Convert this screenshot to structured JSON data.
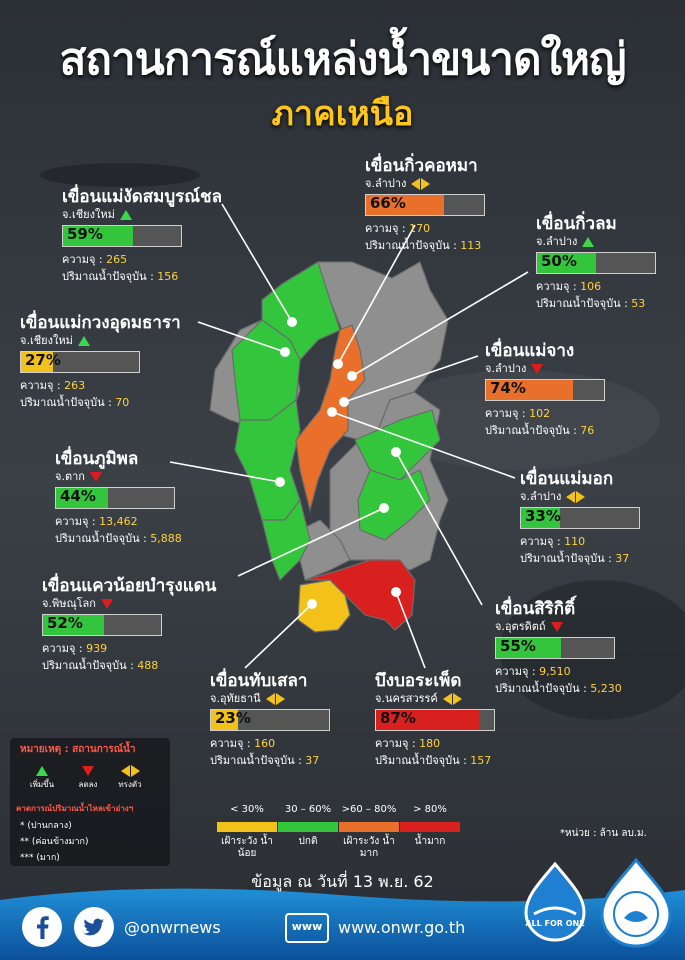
{
  "title": "สถานการณ์แหล่งน้ำขนาดใหญ่",
  "subtitle": "ภาคเหนือ",
  "colors": {
    "green": "#33c63c",
    "yellow": "#f2c21a",
    "orange": "#e8702a",
    "red": "#d8201f",
    "gray": "#8f8f8f",
    "label_yellow": "#ffd23a"
  },
  "labels": {
    "capacity": "ความจุ",
    "current": "ปริมาณน้ำปัจจุบัน"
  },
  "chart_data": {
    "type": "bar",
    "unit": "*หน่วย : ล้าน ลบ.ม.",
    "date": "ข้อมูล ณ วันที่ 13 พ.ย. 62",
    "dams": [
      {
        "name": "เขื่อนแม่งัดสมบูรณ์ชล",
        "province": "จ.เชียงใหม่",
        "trend": "up",
        "percent": 59,
        "pct_label": "59%",
        "capacity": "265",
        "current": "156",
        "status": "green"
      },
      {
        "name": "เขื่อนกิ่วคอหมา",
        "province": "จ.ลำปาง",
        "trend": "steady",
        "percent": 66,
        "pct_label": "66%",
        "capacity": "170",
        "current": "113",
        "status": "orange"
      },
      {
        "name": "เขื่อนกิ่วลม",
        "province": "จ.ลำปาง",
        "trend": "up",
        "percent": 50,
        "pct_label": "50%",
        "capacity": "106",
        "current": "53",
        "status": "green"
      },
      {
        "name": "เขื่อนแม่กวงอุดมธารา",
        "province": "จ.เชียงใหม่",
        "trend": "up",
        "percent": 27,
        "pct_label": "27%",
        "capacity": "263",
        "current": "70",
        "status": "yellow"
      },
      {
        "name": "เขื่อนแม่จาง",
        "province": "จ.ลำปาง",
        "trend": "down",
        "percent": 74,
        "pct_label": "74%",
        "capacity": "102",
        "current": "76",
        "status": "orange"
      },
      {
        "name": "เขื่อนภูมิพล",
        "province": "จ.ตาก",
        "trend": "down",
        "percent": 44,
        "pct_label": "44%",
        "capacity": "13,462",
        "current": "5,888",
        "status": "green"
      },
      {
        "name": "เขื่อนแม่มอก",
        "province": "จ.ลำปาง",
        "trend": "steady",
        "percent": 33,
        "pct_label": "33%",
        "capacity": "110",
        "current": "37",
        "status": "green"
      },
      {
        "name": "เขื่อนแควน้อยบำรุงแดน",
        "province": "จ.พิษณุโลก",
        "trend": "down",
        "percent": 52,
        "pct_label": "52%",
        "capacity": "939",
        "current": "488",
        "status": "green"
      },
      {
        "name": "เขื่อนสิริกิติ์",
        "province": "จ.อุตรดิตถ์",
        "trend": "down",
        "percent": 55,
        "pct_label": "55%",
        "capacity": "9,510",
        "current": "5,230",
        "status": "green"
      },
      {
        "name": "เขื่อนทับเสลา",
        "province": "จ.อุทัยธานี",
        "trend": "steady",
        "percent": 23,
        "pct_label": "23%",
        "capacity": "160",
        "current": "37",
        "status": "yellow"
      },
      {
        "name": "บึงบอระเพ็ด",
        "province": "จ.นครสวรรค์",
        "trend": "steady",
        "percent": 87,
        "pct_label": "87%",
        "capacity": "180",
        "current": "157",
        "status": "red"
      }
    ],
    "scale": [
      {
        "range": "< 30%",
        "desc": "เฝ้าระวัง น้ำน้อย",
        "color": "#f2c21a"
      },
      {
        "range": "30 – 60%",
        "desc": "ปกติ",
        "color": "#33c63c"
      },
      {
        "range": ">60 – 80%",
        "desc": "เฝ้าระวัง น้ำมาก",
        "color": "#e8702a"
      },
      {
        "range": "> 80%",
        "desc": "น้ำมาก",
        "color": "#d8201f"
      }
    ]
  },
  "legend": {
    "title": "หมายเหตุ : สถานการณ์น้ำ",
    "up": "เพิ่มขึ้น",
    "down": "ลดลง",
    "steady": "ทรงตัว",
    "inflow_title": "คาดการณ์ปริมาณน้ำไหลเข้าอ่างฯ",
    "s1": "* (ปานกลาง)",
    "s2": "** (ค่อนข้างมาก)",
    "s3": "*** (มาก)"
  },
  "footer": {
    "handle": "@onwrnews",
    "www": "www",
    "website": "www.onwr.go.th",
    "logo_text": "ALL FOR ONE"
  }
}
